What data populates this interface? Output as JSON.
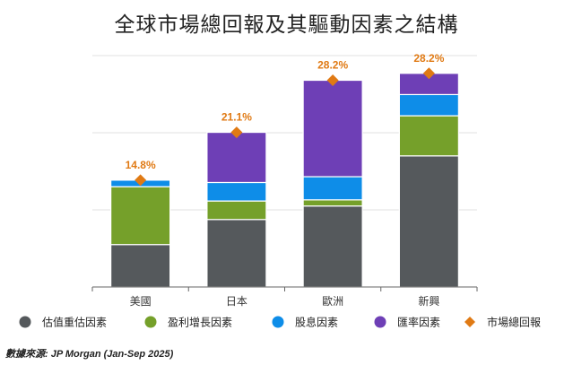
{
  "chart_data": {
    "type": "bar",
    "stacked": true,
    "title": "全球市場總回報及其驅動因素之結構",
    "categories": [
      "美國",
      "日本",
      "歐洲",
      "新興"
    ],
    "series": [
      {
        "name": "估值重估因素",
        "color": "#55595c",
        "values": [
          11.0,
          17.5,
          21.0,
          34.0
        ]
      },
      {
        "name": "盈利增長因素",
        "color": "#75a02a",
        "values": [
          15.0,
          4.8,
          1.6,
          10.4
        ]
      },
      {
        "name": "股息因素",
        "color": "#0e8de8",
        "values": [
          1.7,
          4.8,
          6.0,
          5.5
        ]
      },
      {
        "name": "匯率因素",
        "color": "#6e3fb6",
        "values": [
          0.0,
          13.0,
          25.0,
          5.5
        ]
      }
    ],
    "total_series": {
      "name": "市場總回報",
      "color": "#e07a14",
      "values": [
        14.8,
        21.1,
        28.2,
        28.2
      ],
      "labels": [
        "14.8%",
        "21.1%",
        "28.2%",
        "28.2%"
      ]
    },
    "ylim": [
      0,
      60
    ],
    "y_gridlines": [
      0,
      20,
      40,
      60
    ],
    "grid": true,
    "legend_position": "bottom",
    "xlabel": "",
    "ylabel": ""
  },
  "source": "數據來源: JP Morgan (Jan-Sep 2025)"
}
